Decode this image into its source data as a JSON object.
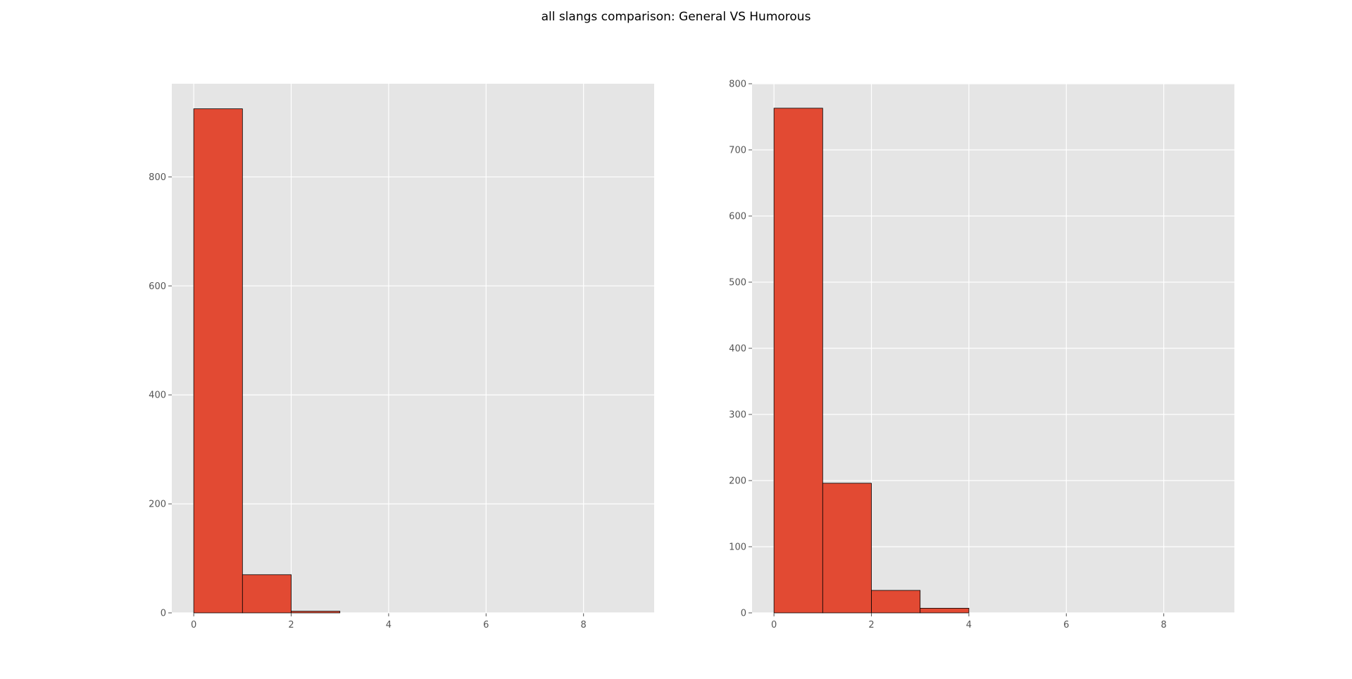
{
  "title": "all slangs comparison: General VS Humorous",
  "colors": {
    "bar": "#E24A33",
    "bar_edge": "#000000",
    "panel": "#E5E5E5",
    "grid": "#FFFFFF",
    "tick": "#555555"
  },
  "chart_data": [
    {
      "type": "bar",
      "histogram": true,
      "bin_edges": [
        0,
        1,
        2,
        3,
        4,
        5,
        6,
        7,
        8,
        9
      ],
      "values": [
        925,
        70,
        3,
        0,
        0,
        0,
        0,
        0,
        0
      ],
      "xlim": [
        -0.45,
        9.45
      ],
      "ylim": [
        0,
        971
      ],
      "xticks": [
        0,
        2,
        4,
        6,
        8
      ],
      "yticks": [
        0,
        200,
        400,
        600,
        800
      ],
      "grid": true
    },
    {
      "type": "bar",
      "histogram": true,
      "bin_edges": [
        0,
        1,
        2,
        3,
        4,
        5,
        6,
        7,
        8,
        9
      ],
      "values": [
        763,
        196,
        34,
        7,
        0,
        0,
        0,
        0,
        0
      ],
      "xlim": [
        -0.45,
        9.45
      ],
      "ylim": [
        0,
        800
      ],
      "xticks": [
        0,
        2,
        4,
        6,
        8
      ],
      "yticks": [
        0,
        100,
        200,
        300,
        400,
        500,
        600,
        700,
        800
      ],
      "grid": true
    }
  ]
}
